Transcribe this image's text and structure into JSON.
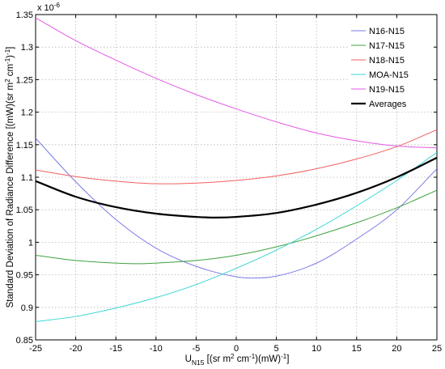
{
  "chart_data": {
    "type": "line",
    "x_tick_labels": [
      "-25",
      "-20",
      "-15",
      "-10",
      "-5",
      "0",
      "5",
      "10",
      "15",
      "20",
      "25"
    ],
    "y_tick_labels": [
      "0.85",
      "0.9",
      "0.95",
      "1",
      "1.05",
      "1.1",
      "1.15",
      "1.2",
      "1.25",
      "1.3",
      "1.35"
    ],
    "y_exponent_label": "x 10",
    "y_exponent_power": "-6",
    "xlim": [
      -25,
      25
    ],
    "ylim": [
      0.85,
      1.35
    ],
    "grid": true,
    "legend_position": "top-right",
    "ylabel": {
      "main": "Standard Deviation of Radiance Difference [(mW)(sr m",
      "sup1": "2",
      "mid1": " cm",
      "sup2": "-1",
      "mid2": ")",
      "sup3": "-1",
      "end": "]"
    },
    "xlabel": {
      "u": "U",
      "sub": "N15",
      "a": " [(sr m",
      "sup1": "2",
      "b": " cm",
      "sup2": "-1",
      "c": ")(mW)",
      "sup3": "-1",
      "d": "]"
    },
    "series": [
      {
        "name": "N16-N15",
        "color": "#7b7be8",
        "width": 1,
        "x": [
          -25,
          -20,
          -15,
          -10,
          -5,
          0,
          2,
          5,
          10,
          15,
          20,
          25
        ],
        "y": [
          1.16,
          1.093,
          1.035,
          0.991,
          0.963,
          0.947,
          0.945,
          0.948,
          0.968,
          1.005,
          1.05,
          1.113
        ]
      },
      {
        "name": "N17-N15",
        "color": "#3fa33f",
        "width": 1,
        "x": [
          -25,
          -20,
          -15,
          -12,
          -10,
          -5,
          0,
          5,
          10,
          15,
          20,
          25
        ],
        "y": [
          0.98,
          0.972,
          0.968,
          0.967,
          0.968,
          0.972,
          0.98,
          0.993,
          1.01,
          1.03,
          1.053,
          1.08
        ]
      },
      {
        "name": "N18-N15",
        "color": "#f06060",
        "width": 1,
        "x": [
          -25,
          -20,
          -15,
          -10,
          -5,
          0,
          5,
          10,
          15,
          20,
          25
        ],
        "y": [
          1.111,
          1.101,
          1.094,
          1.09,
          1.091,
          1.095,
          1.102,
          1.113,
          1.128,
          1.147,
          1.173
        ]
      },
      {
        "name": "MOA-N15",
        "color": "#3ad6d6",
        "width": 1,
        "x": [
          -25,
          -20,
          -15,
          -10,
          -5,
          0,
          5,
          10,
          15,
          20,
          25
        ],
        "y": [
          0.878,
          0.886,
          0.899,
          0.915,
          0.935,
          0.96,
          0.988,
          1.02,
          1.056,
          1.095,
          1.138
        ]
      },
      {
        "name": "N19-N15",
        "color": "#e35ae3",
        "width": 1,
        "x": [
          -25,
          -20,
          -15,
          -10,
          -5,
          0,
          5,
          10,
          15,
          20,
          25
        ],
        "y": [
          1.345,
          1.31,
          1.28,
          1.252,
          1.227,
          1.205,
          1.185,
          1.168,
          1.156,
          1.148,
          1.145
        ]
      },
      {
        "name": "Averages",
        "color": "#000000",
        "width": 2.2,
        "x": [
          -25,
          -20,
          -15,
          -10,
          -5,
          -2.5,
          0,
          5,
          10,
          15,
          20,
          25
        ],
        "y": [
          1.094,
          1.07,
          1.054,
          1.044,
          1.039,
          1.038,
          1.039,
          1.045,
          1.058,
          1.076,
          1.1,
          1.13
        ]
      }
    ]
  }
}
